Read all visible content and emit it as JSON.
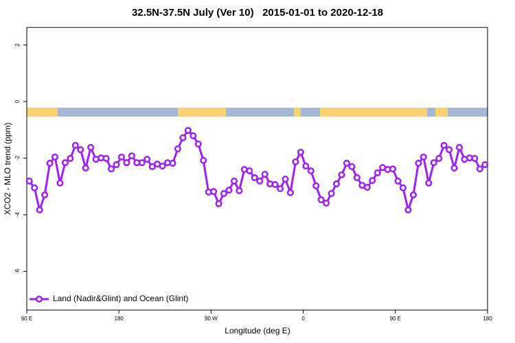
{
  "chart_data": {
    "type": "line",
    "title": "32.5N-37.5N July (Ver 10)   2015-01-01 to 2020-12-18",
    "x_label": "Longitude (deg E)",
    "y_label": "XCO2 - MLO trend (ppm)",
    "x": [
      92.5,
      97.5,
      102.5,
      107.5,
      112.5,
      117.5,
      122.5,
      127.5,
      132.5,
      137.5,
      142.5,
      147.5,
      152.5,
      157.5,
      162.5,
      167.5,
      172.5,
      177.5,
      182.5,
      187.5,
      192.5,
      197.5,
      202.5,
      207.5,
      212.5,
      217.5,
      222.5,
      227.5,
      232.5,
      237.5,
      242.5,
      247.5,
      252.5,
      257.5,
      262.5,
      267.5,
      272.5,
      277.5,
      282.5,
      287.5,
      292.5,
      297.5,
      302.5,
      307.5,
      312.5,
      317.5,
      322.5,
      327.5,
      332.5,
      337.5,
      342.5,
      347.5,
      352.5,
      357.5,
      362.5,
      367.5,
      372.5,
      377.5,
      382.5,
      387.5,
      392.5,
      397.5,
      402.5,
      407.5,
      412.5,
      417.5,
      422.5,
      427.5,
      432.5,
      437.5,
      442.5,
      447.5,
      452.5,
      457.5,
      462.5,
      467.5,
      472.5,
      477.5,
      482.5,
      487.5,
      492.5,
      497.5,
      502.5,
      507.5,
      512.5,
      517.5,
      522.5,
      527.5,
      532.5,
      537.5
    ],
    "series": [
      {
        "name": "Land (Nadir&Glint) and Ocean (Glint)",
        "color": "#a020f0",
        "values": [
          -2.81,
          -3.05,
          -3.83,
          -3.3,
          -2.18,
          -1.96,
          -2.88,
          -2.16,
          -2.01,
          -1.55,
          -1.7,
          -2.35,
          -1.62,
          -2.04,
          -1.99,
          -2.01,
          -2.38,
          -2.23,
          -1.96,
          -2.16,
          -1.92,
          -2.16,
          -2.16,
          -2.04,
          -2.3,
          -2.21,
          -2.28,
          -2.16,
          -2.18,
          -1.67,
          -1.28,
          -1.02,
          -1.21,
          -1.5,
          -2.08,
          -3.2,
          -3.18,
          -3.61,
          -3.25,
          -3.13,
          -2.81,
          -3.15,
          -2.4,
          -2.45,
          -2.69,
          -2.81,
          -2.57,
          -2.91,
          -2.93,
          -3.08,
          -2.74,
          -3.22,
          -2.13,
          -1.79,
          -2.28,
          -2.45,
          -2.98,
          -3.47,
          -3.59,
          -3.25,
          -2.91,
          -2.59,
          -2.18,
          -2.3,
          -2.69,
          -2.96,
          -3.03,
          -2.79,
          -2.52,
          -2.33,
          -2.4,
          -2.38,
          -2.81,
          -3.05,
          -3.83,
          -3.3,
          -2.18,
          -1.96,
          -2.88,
          -2.16,
          -2.01,
          -1.55,
          -1.7,
          -2.35,
          -1.62,
          -2.04,
          -1.99,
          -2.01,
          -2.38,
          -2.23
        ]
      }
    ],
    "xlim": [
      90,
      540
    ],
    "xticks": [
      {
        "value": 90,
        "label": "90 E"
      },
      180,
      {
        "value": 270,
        "label": "90 W"
      },
      {
        "value": 360,
        "label": "0"
      },
      {
        "value": 450,
        "label": "90 E"
      },
      {
        "value": 540,
        "label": "180"
      }
    ],
    "ylim": [
      -7.37,
      2.62
    ],
    "yticks": [
      -6,
      -4,
      -2,
      0,
      2
    ],
    "legend": "bottom-left"
  }
}
